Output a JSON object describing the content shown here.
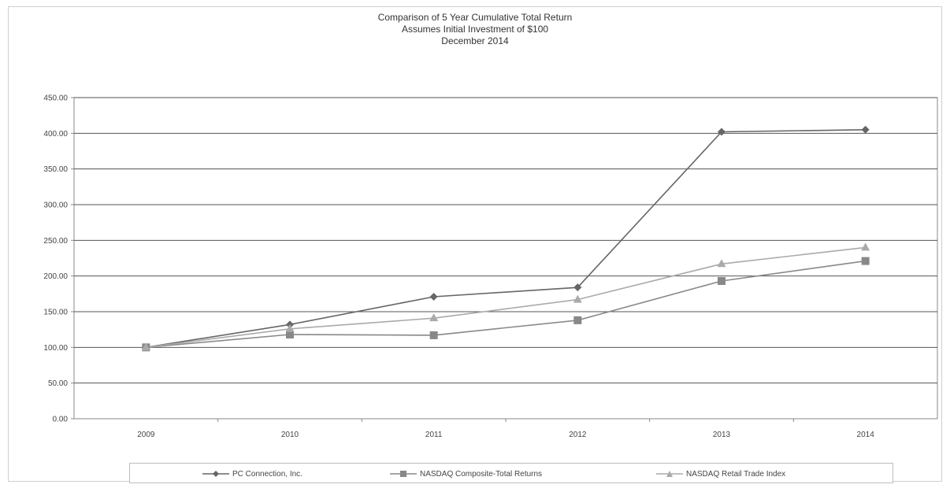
{
  "chart_data": {
    "type": "line",
    "title": "Comparison of 5 Year Cumulative Total Return",
    "subtitle_lines": [
      "Assumes Initial Investment of $100",
      "December 2014"
    ],
    "categories": [
      "2009",
      "2010",
      "2011",
      "2012",
      "2013",
      "2014"
    ],
    "ylim": [
      0,
      450
    ],
    "yticks": [
      "0.00",
      "50.00",
      "100.00",
      "150.00",
      "200.00",
      "250.00",
      "300.00",
      "350.00",
      "400.00",
      "450.00"
    ],
    "grid": true,
    "legend_position": "bottom",
    "series": [
      {
        "name": "PC Connection, Inc.",
        "marker": "diamond",
        "color": "#666666",
        "values": [
          100,
          132,
          171,
          184,
          402,
          405
        ]
      },
      {
        "name": "NASDAQ Composite-Total Returns",
        "marker": "square",
        "color": "#888888",
        "values": [
          100,
          118,
          117,
          138,
          193,
          221
        ]
      },
      {
        "name": "NASDAQ Retail Trade Index",
        "marker": "triangle",
        "color": "#aaaaaa",
        "values": [
          100,
          126,
          141,
          167,
          217,
          240
        ]
      }
    ]
  }
}
